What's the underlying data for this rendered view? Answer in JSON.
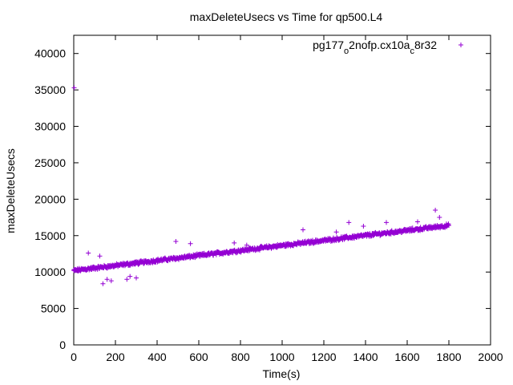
{
  "chart_data": {
    "type": "scatter",
    "title": "maxDeleteUsecs vs Time for qp500.L4",
    "xlabel": "Time(s)",
    "ylabel": "maxDeleteUsecs",
    "xlim": [
      0,
      2000
    ],
    "ylim": [
      0,
      42500
    ],
    "x_ticks": [
      0,
      200,
      400,
      600,
      800,
      1000,
      1200,
      1400,
      1600,
      1800,
      2000
    ],
    "y_ticks": [
      0,
      5000,
      10000,
      15000,
      20000,
      25000,
      30000,
      35000,
      40000
    ],
    "grid": false,
    "legend_position": "top-right",
    "series": [
      {
        "name": "pg177_o2nofp.cx10a_c8r32",
        "legend_parts": [
          {
            "text": "pg177",
            "sub": false
          },
          {
            "text": "o",
            "sub": true
          },
          {
            "text": "2nofp.cx10a",
            "sub": false
          },
          {
            "text": "c",
            "sub": true
          },
          {
            "text": "8r32",
            "sub": false
          }
        ],
        "color": "#9400d3",
        "marker": "plus",
        "trend": {
          "x_start": 0,
          "x_end": 1800,
          "y_start": 10200,
          "y_end": 16400,
          "noise": 180
        },
        "outliers": [
          [
            2,
            35300
          ],
          [
            70,
            12600
          ],
          [
            140,
            8400
          ],
          [
            160,
            9000
          ],
          [
            180,
            8800
          ],
          [
            125,
            12200
          ],
          [
            255,
            9000
          ],
          [
            270,
            9400
          ],
          [
            300,
            9200
          ],
          [
            490,
            14200
          ],
          [
            560,
            13900
          ],
          [
            770,
            14000
          ],
          [
            830,
            13700
          ],
          [
            1100,
            15800
          ],
          [
            1260,
            15500
          ],
          [
            1320,
            16800
          ],
          [
            1390,
            16300
          ],
          [
            1500,
            16800
          ],
          [
            1650,
            16900
          ],
          [
            1735,
            18500
          ],
          [
            1755,
            17500
          ]
        ]
      }
    ]
  }
}
